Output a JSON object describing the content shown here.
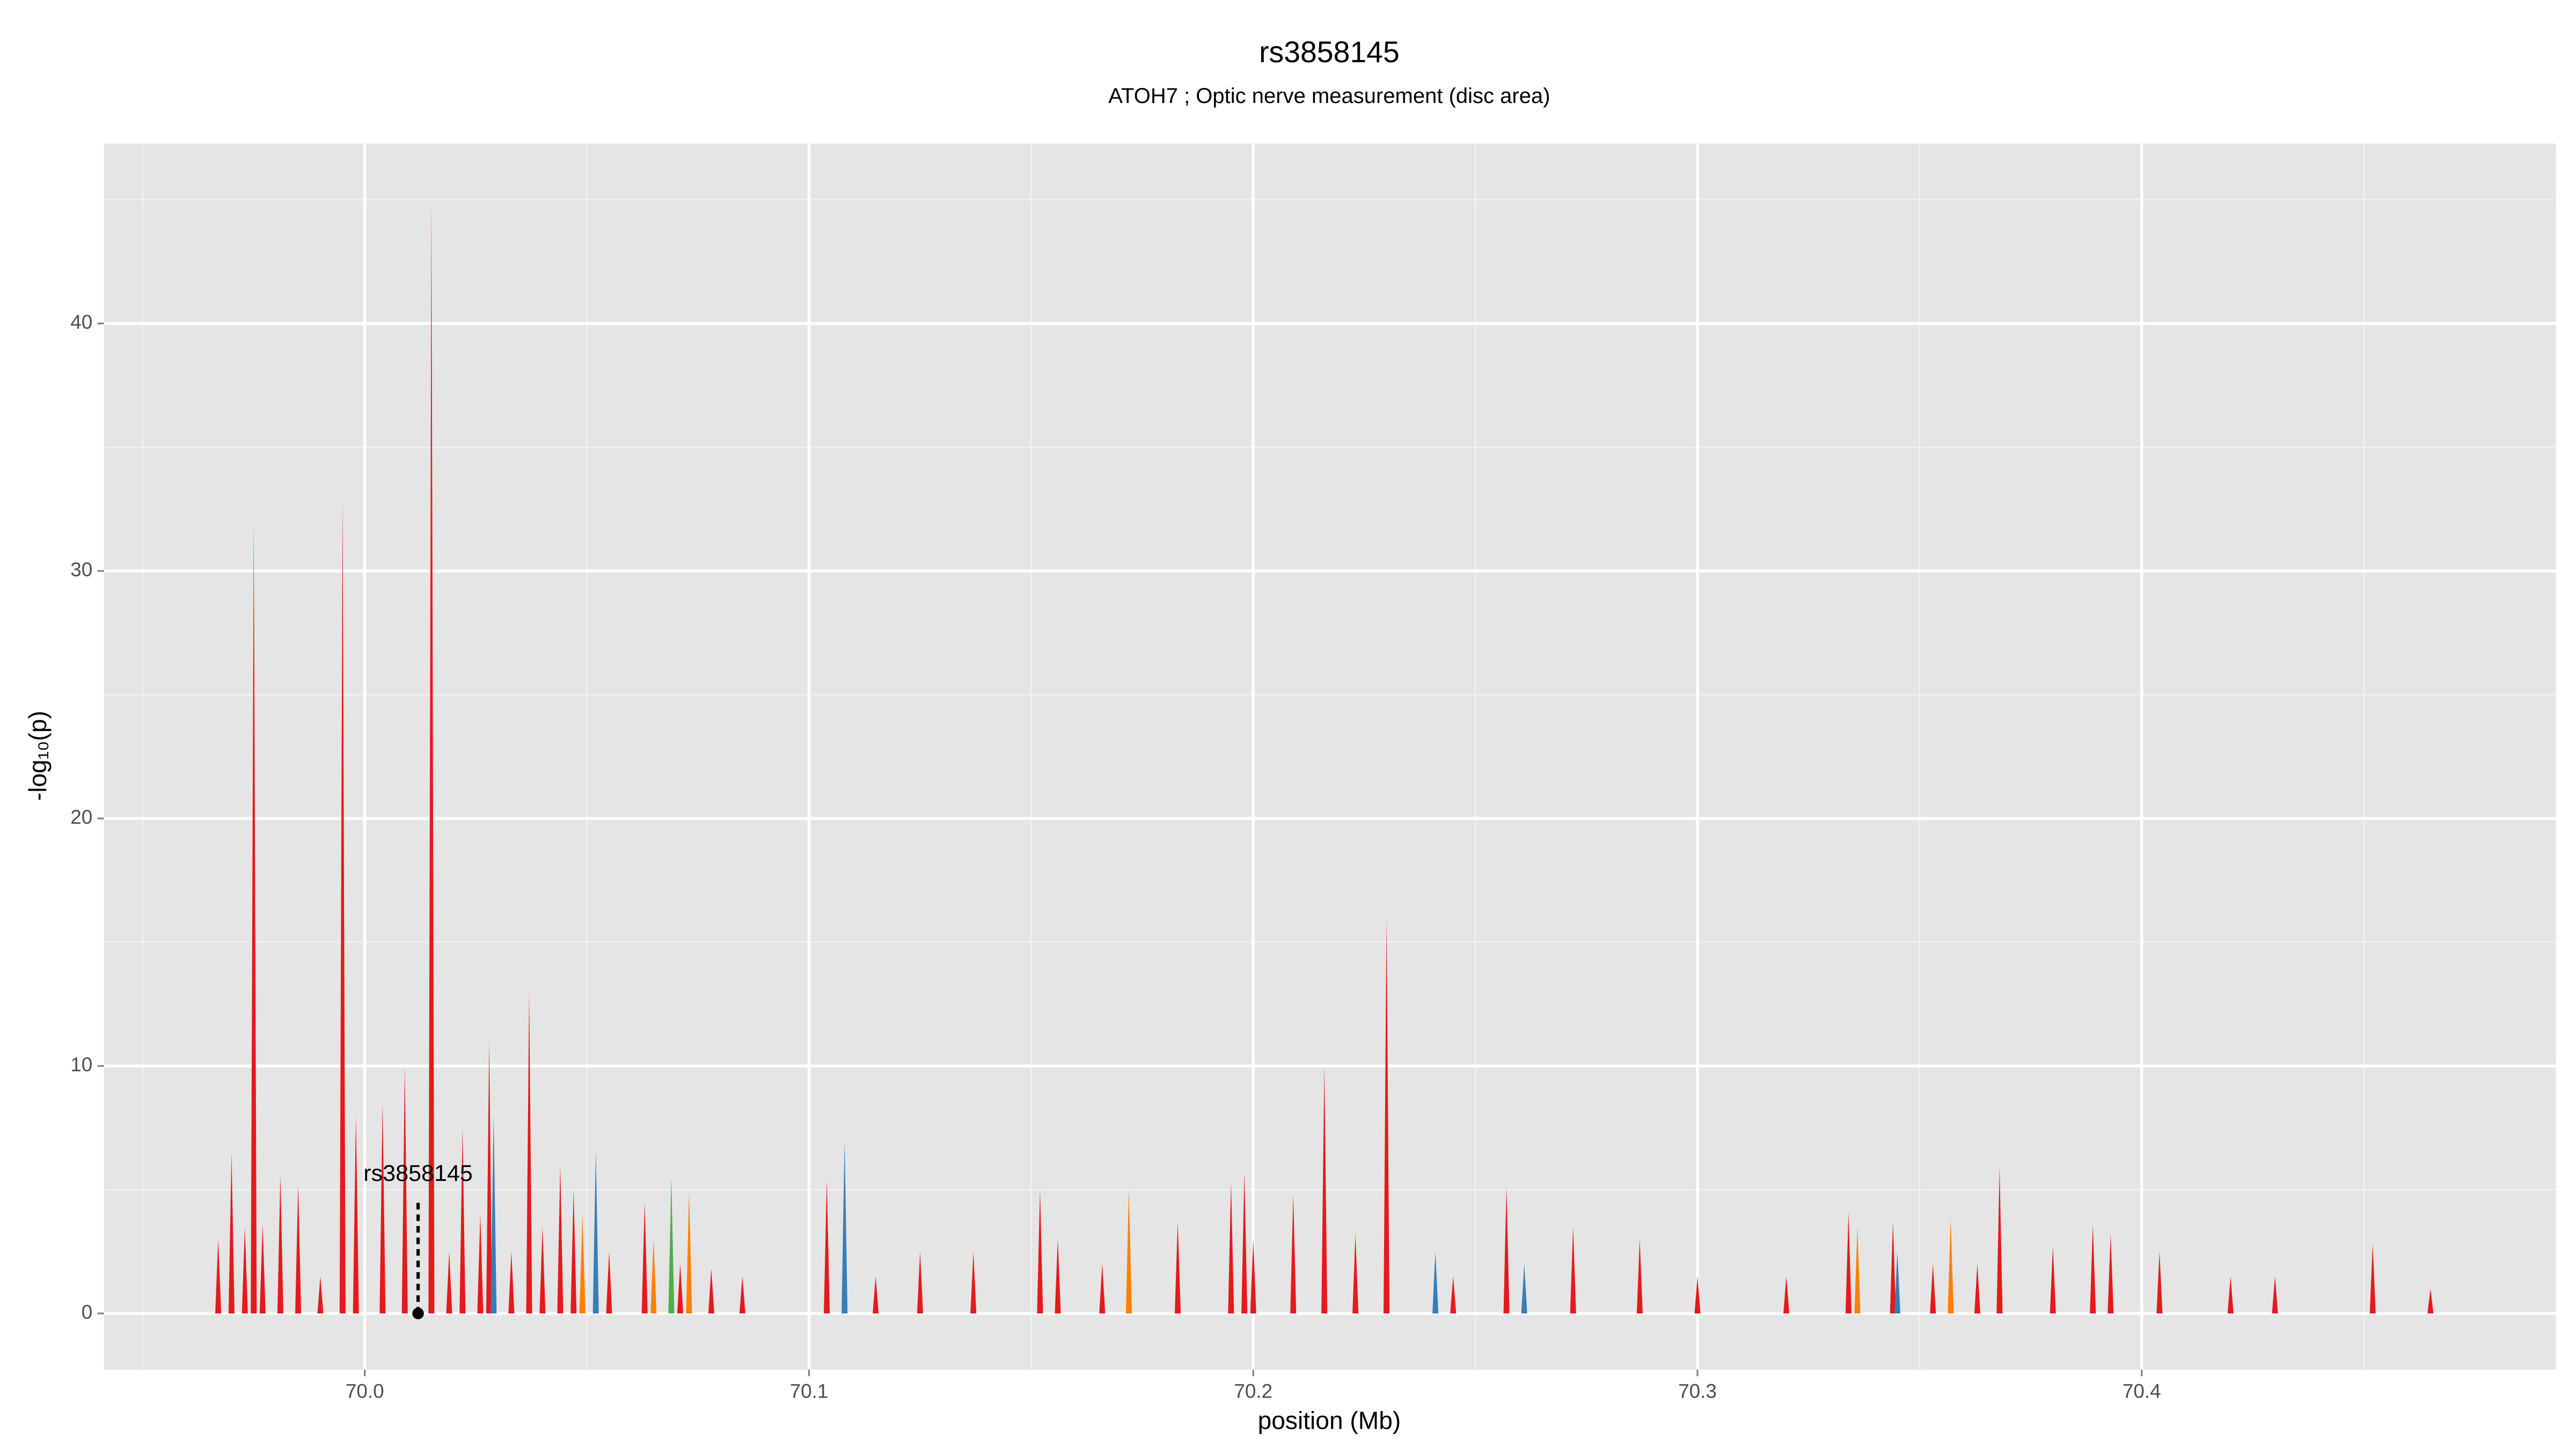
{
  "chart_data": {
    "type": "spike",
    "title": "rs3858145",
    "subtitle": "ATOH7 ; Optic nerve measurement (disc area)",
    "x_label": "position (Mb)",
    "y_label": "-log₁₀(p)",
    "xlim": [
      69.9413,
      70.4933
    ],
    "ylim": [
      -2.27,
      47.27
    ],
    "xticks": [
      {
        "value": 70,
        "label": "70.0"
      },
      70.1,
      70.2,
      70.3,
      70.4
    ],
    "yticks": [
      0,
      10,
      20,
      30,
      40
    ],
    "grid": true,
    "series": [
      {
        "color": "#e41a1c",
        "x": [
          69.967,
          69.97,
          69.973,
          69.975,
          69.977,
          69.981,
          69.985,
          69.99,
          69.995,
          69.998,
          70.004,
          70.009,
          70.015,
          70.019,
          70.022,
          70.026,
          70.028,
          70.033,
          70.037,
          70.04,
          70.044,
          70.047,
          70.055,
          70.063,
          70.071,
          70.078,
          70.085,
          70.104,
          70.115,
          70.125,
          70.137,
          70.152,
          70.156,
          70.166,
          70.183,
          70.195,
          70.198,
          70.2,
          70.209,
          70.216,
          70.223,
          70.23,
          70.245,
          70.257,
          70.272,
          70.287,
          70.3,
          70.32,
          70.334,
          70.344,
          70.353,
          70.363,
          70.368,
          70.38,
          70.389,
          70.393,
          70.404,
          70.42,
          70.43,
          70.452,
          70.465
        ],
        "values": [
          3,
          6.5,
          3.5,
          32,
          3.6,
          5.6,
          5.2,
          1.5,
          33,
          8,
          8.5,
          10,
          45,
          2.5,
          7.5,
          4,
          11,
          2.5,
          13,
          3.5,
          6,
          5,
          2.5,
          4.5,
          2,
          1.8,
          1.5,
          5.4,
          1.5,
          2.5,
          2.5,
          5,
          3,
          2,
          3.7,
          5.3,
          5.7,
          3,
          4.8,
          10,
          3.2,
          16,
          1.5,
          5.1,
          3.5,
          3,
          1.5,
          1.5,
          4.1,
          3.7,
          2,
          2,
          5.9,
          2.7,
          3.6,
          3.2,
          2.5,
          1.5,
          1.5,
          2.8,
          1
        ]
      },
      {
        "color": "#377eb8",
        "x": [
          70.029,
          70.052,
          70.108,
          70.241,
          70.261,
          70.345
        ],
        "values": [
          8,
          6.6,
          7,
          2.5,
          2,
          2.5
        ]
      },
      {
        "color": "#ff7f00",
        "x": [
          70.049,
          70.065,
          70.073,
          70.172,
          70.336,
          70.357
        ],
        "values": [
          4,
          3,
          4.9,
          5,
          3.5,
          3.8
        ]
      },
      {
        "color": "#4daf4a",
        "x": [
          70.069
        ],
        "values": [
          5.5
        ]
      }
    ],
    "annotation": {
      "label": "rs3858145",
      "x": 70.012,
      "y": 0
    }
  }
}
